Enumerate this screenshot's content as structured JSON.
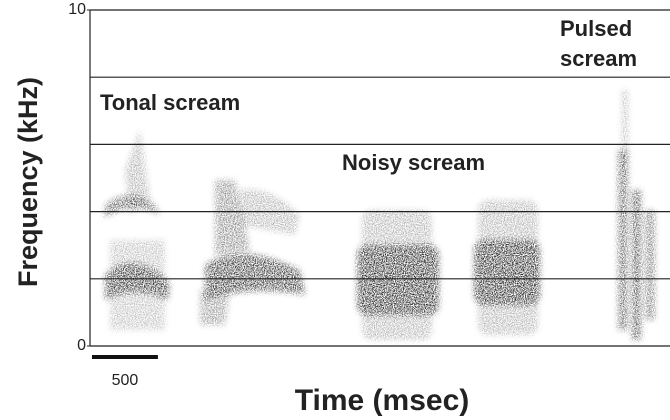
{
  "chart_data": {
    "type": "spectrogram",
    "ylabel": "Frequency (kHz)",
    "xlabel": "Time (msec)",
    "ylim": [
      0,
      10
    ],
    "yticks": [
      0,
      10
    ],
    "ygrid": [
      2,
      4,
      6,
      8
    ],
    "xlim": [
      0,
      4400
    ],
    "scale_bar": {
      "value": 500
    },
    "annotations": [
      {
        "lines": [
          "Tonal scream"
        ]
      },
      {
        "lines": [
          "Noisy scream"
        ]
      },
      {
        "lines": [
          "Pulsed",
          "scream"
        ]
      }
    ]
  }
}
